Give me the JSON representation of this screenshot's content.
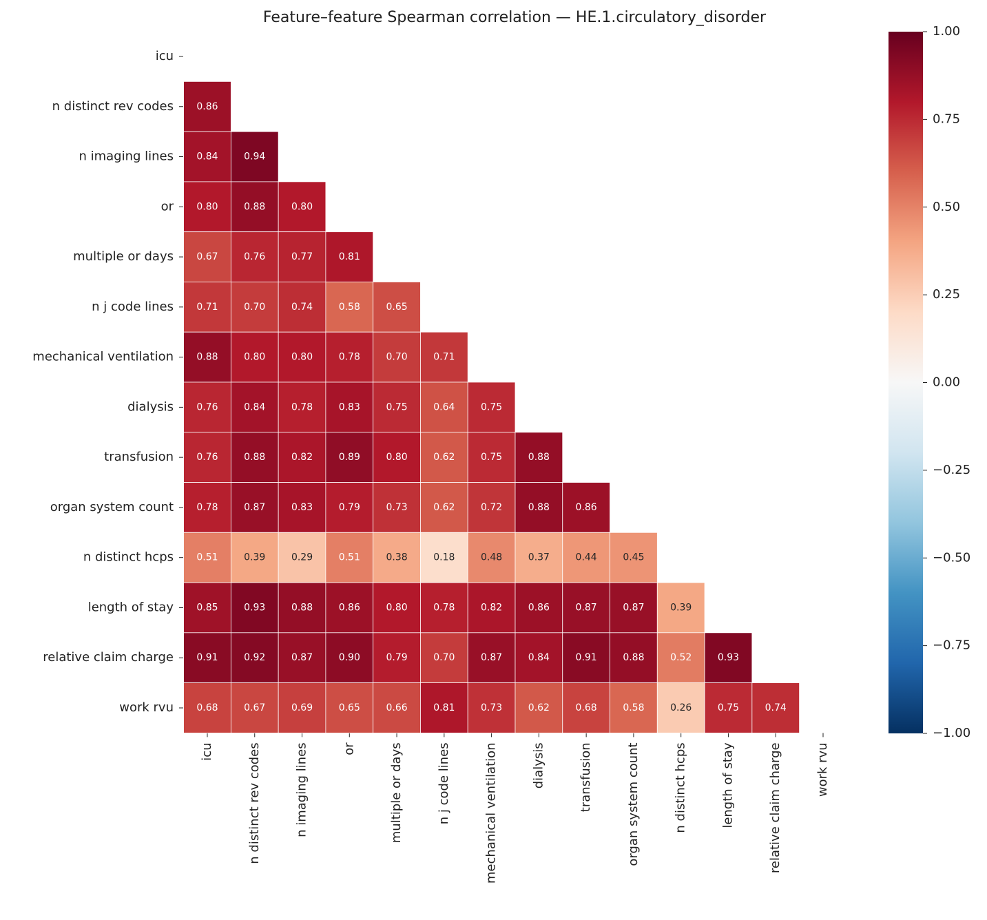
{
  "chart_data": {
    "type": "heatmap",
    "title": "Feature–feature Spearman correlation — HE.1.circulatory_disorder",
    "categories": [
      "icu",
      "n distinct rev codes",
      "n imaging lines",
      "or",
      "multiple or days",
      "n j code lines",
      "mechanical ventilation",
      "dialysis",
      "transfusion",
      "organ system count",
      "n distinct hcps",
      "length of stay",
      "relative claim charge",
      "work rvu"
    ],
    "values": [
      [
        null,
        null,
        null,
        null,
        null,
        null,
        null,
        null,
        null,
        null,
        null,
        null,
        null,
        null
      ],
      [
        0.86,
        null,
        null,
        null,
        null,
        null,
        null,
        null,
        null,
        null,
        null,
        null,
        null,
        null
      ],
      [
        0.84,
        0.94,
        null,
        null,
        null,
        null,
        null,
        null,
        null,
        null,
        null,
        null,
        null,
        null
      ],
      [
        0.8,
        0.88,
        0.8,
        null,
        null,
        null,
        null,
        null,
        null,
        null,
        null,
        null,
        null,
        null
      ],
      [
        0.67,
        0.76,
        0.77,
        0.81,
        null,
        null,
        null,
        null,
        null,
        null,
        null,
        null,
        null,
        null
      ],
      [
        0.71,
        0.7,
        0.74,
        0.58,
        0.65,
        null,
        null,
        null,
        null,
        null,
        null,
        null,
        null,
        null
      ],
      [
        0.88,
        0.8,
        0.8,
        0.78,
        0.7,
        0.71,
        null,
        null,
        null,
        null,
        null,
        null,
        null,
        null
      ],
      [
        0.76,
        0.84,
        0.78,
        0.83,
        0.75,
        0.64,
        0.75,
        null,
        null,
        null,
        null,
        null,
        null,
        null
      ],
      [
        0.76,
        0.88,
        0.82,
        0.89,
        0.8,
        0.62,
        0.75,
        0.88,
        null,
        null,
        null,
        null,
        null,
        null
      ],
      [
        0.78,
        0.87,
        0.83,
        0.79,
        0.73,
        0.62,
        0.72,
        0.88,
        0.86,
        null,
        null,
        null,
        null,
        null
      ],
      [
        0.51,
        0.39,
        0.29,
        0.51,
        0.38,
        0.18,
        0.48,
        0.37,
        0.44,
        0.45,
        null,
        null,
        null,
        null
      ],
      [
        0.85,
        0.93,
        0.88,
        0.86,
        0.8,
        0.78,
        0.82,
        0.86,
        0.87,
        0.87,
        0.39,
        null,
        null,
        null
      ],
      [
        0.91,
        0.92,
        0.87,
        0.9,
        0.79,
        0.7,
        0.87,
        0.84,
        0.91,
        0.88,
        0.52,
        0.93,
        null,
        null
      ],
      [
        0.68,
        0.67,
        0.69,
        0.65,
        0.66,
        0.81,
        0.73,
        0.62,
        0.68,
        0.58,
        0.26,
        0.75,
        0.74,
        null
      ]
    ],
    "value_labels": [
      [
        null,
        null,
        null,
        null,
        null,
        null,
        null,
        null,
        null,
        null,
        null,
        null,
        null,
        null
      ],
      [
        "0.86",
        null,
        null,
        null,
        null,
        null,
        null,
        null,
        null,
        null,
        null,
        null,
        null,
        null
      ],
      [
        "0.84",
        "0.94",
        null,
        null,
        null,
        null,
        null,
        null,
        null,
        null,
        null,
        null,
        null,
        null
      ],
      [
        "0.80",
        "0.88",
        "0.80",
        null,
        null,
        null,
        null,
        null,
        null,
        null,
        null,
        null,
        null,
        null
      ],
      [
        "0.67",
        "0.76",
        "0.77",
        "0.81",
        null,
        null,
        null,
        null,
        null,
        null,
        null,
        null,
        null,
        null
      ],
      [
        "0.71",
        "0.70",
        "0.74",
        "0.58",
        "0.65",
        null,
        null,
        null,
        null,
        null,
        null,
        null,
        null,
        null
      ],
      [
        "0.88",
        "0.80",
        "0.80",
        "0.78",
        "0.70",
        "0.71",
        null,
        null,
        null,
        null,
        null,
        null,
        null,
        null
      ],
      [
        "0.76",
        "0.84",
        "0.78",
        "0.83",
        "0.75",
        "0.64",
        "0.75",
        null,
        null,
        null,
        null,
        null,
        null,
        null
      ],
      [
        "0.76",
        "0.88",
        "0.82",
        "0.89",
        "0.80",
        "0.62",
        "0.75",
        "0.88",
        null,
        null,
        null,
        null,
        null,
        null
      ],
      [
        "0.78",
        "0.87",
        "0.83",
        "0.79",
        "0.73",
        "0.62",
        "0.72",
        "0.88",
        "0.86",
        null,
        null,
        null,
        null,
        null
      ],
      [
        "0.51",
        "0.39",
        "0.29",
        "0.51",
        "0.38",
        "0.18",
        "0.48",
        "0.37",
        "0.44",
        "0.45",
        null,
        null,
        null,
        null
      ],
      [
        "0.85",
        "0.93",
        "0.88",
        "0.86",
        "0.80",
        "0.78",
        "0.82",
        "0.86",
        "0.87",
        "0.87",
        "0.39",
        null,
        null,
        null
      ],
      [
        "0.91",
        "0.92",
        "0.87",
        "0.90",
        "0.79",
        "0.70",
        "0.87",
        "0.84",
        "0.91",
        "0.88",
        "0.52",
        "0.93",
        null,
        null
      ],
      [
        "0.68",
        "0.67",
        "0.69",
        "0.65",
        "0.66",
        "0.81",
        "0.73",
        "0.62",
        "0.68",
        "0.58",
        "0.26",
        "0.75",
        "0.74",
        null
      ]
    ],
    "colormap": "RdBu_r",
    "clim": [
      -1,
      1
    ],
    "cticks": [
      {
        "value": -1,
        "label": "−1.00"
      },
      {
        "value": -0.75,
        "label": "−0.75"
      },
      {
        "value": -0.5,
        "label": "−0.50"
      },
      {
        "value": -0.25,
        "label": "−0.25"
      },
      {
        "value": 0,
        "label": "0.00"
      },
      {
        "value": 0.25,
        "label": "0.25"
      },
      {
        "value": 0.5,
        "label": "0.50"
      },
      {
        "value": 0.75,
        "label": "0.75"
      },
      {
        "value": 1,
        "label": "1.00"
      }
    ]
  }
}
